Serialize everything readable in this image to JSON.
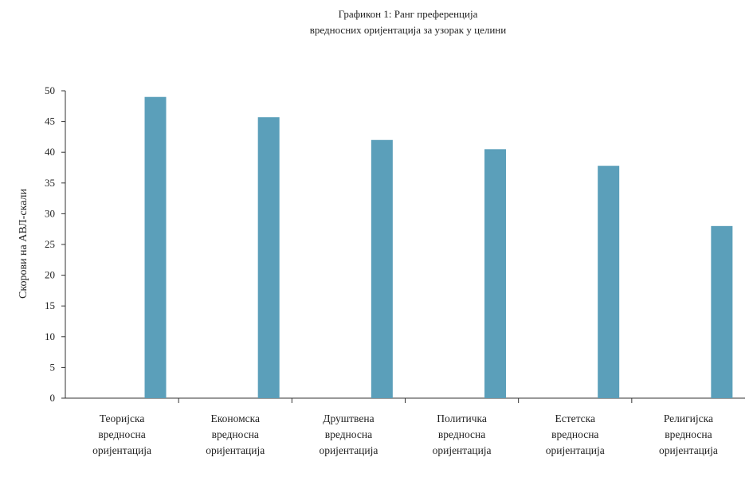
{
  "chart_data": {
    "type": "bar",
    "title_lines": [
      "Графикон 1: Ранг преференција",
      "вредносних оријентација за узорак у целини"
    ],
    "ylabel": "Скорови на АВЛ-скали",
    "xlabel": "",
    "ylim": [
      0,
      50
    ],
    "yticks": [
      0,
      5,
      10,
      15,
      20,
      25,
      30,
      35,
      40,
      45,
      50
    ],
    "grid": false,
    "categories": [
      [
        "Теоријска",
        "вредносна",
        "оријентација"
      ],
      [
        "Економска",
        "вредносна",
        "оријентација"
      ],
      [
        "Друштвена",
        "вредносна",
        "оријентација"
      ],
      [
        "Политичка",
        "вредносна",
        "оријентација"
      ],
      [
        "Естетска",
        "вредносна",
        "оријентација"
      ],
      [
        "Религијска",
        "вредносна",
        "оријентација"
      ]
    ],
    "values": [
      49,
      45.7,
      42,
      40.5,
      37.8,
      28
    ],
    "bar_color": "#5b9fba",
    "axis_color": "#333333"
  }
}
